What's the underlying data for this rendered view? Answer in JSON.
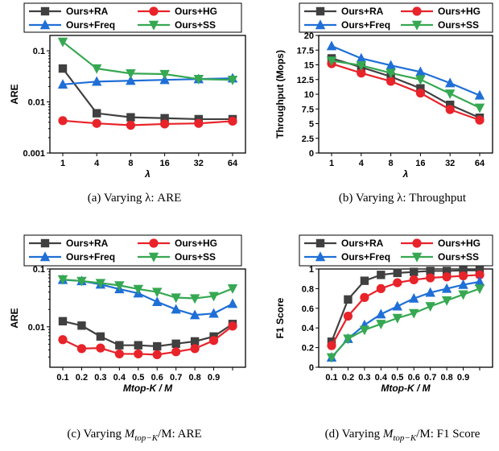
{
  "chart_data": [
    {
      "type": "line",
      "caption": "(a)  Varying λ: ARE",
      "xlabel": "λ",
      "ylabel": "ARE",
      "yscale": "log",
      "ylim": [
        0.001,
        0.2
      ],
      "yticks": [
        0.001,
        0.01,
        0.1
      ],
      "ytick_labels": [
        "0.001",
        "0.01",
        "0.1"
      ],
      "x": [
        1,
        4,
        8,
        16,
        32,
        64
      ],
      "x_tick_labels": [
        "1",
        "4",
        "8",
        "16",
        "32",
        "64"
      ],
      "series": [
        {
          "name": "Ours+RA",
          "color": "#404040",
          "marker": "square",
          "values": [
            0.045,
            0.006,
            0.005,
            0.0048,
            0.0046,
            0.0046
          ]
        },
        {
          "name": "Ours+HG",
          "color": "#e8232a",
          "marker": "circle",
          "values": [
            0.0043,
            0.0038,
            0.0035,
            0.0037,
            0.0038,
            0.0042
          ]
        },
        {
          "name": "Ours+Freq",
          "color": "#1f6fd6",
          "marker": "triangle-up",
          "values": [
            0.022,
            0.025,
            0.026,
            0.027,
            0.028,
            0.029
          ]
        },
        {
          "name": "Ours+SS",
          "color": "#36a852",
          "marker": "triangle-down",
          "values": [
            0.15,
            0.045,
            0.036,
            0.035,
            0.028,
            0.027
          ]
        }
      ]
    },
    {
      "type": "line",
      "caption": "(b)  Varying λ: Throughput",
      "xlabel": "λ",
      "ylabel": "Throughput (Mops)",
      "yscale": "linear",
      "ylim": [
        0,
        20
      ],
      "yticks": [
        0,
        2.5,
        5,
        7.5,
        10,
        12.5,
        15,
        17.5,
        20
      ],
      "ytick_labels": [
        "0",
        "2.5",
        "5",
        "7.5",
        "10",
        "12.5",
        "15",
        "17.5",
        "20"
      ],
      "x": [
        1,
        4,
        8,
        16,
        32,
        64
      ],
      "x_tick_labels": [
        "1",
        "4",
        "8",
        "16",
        "32",
        "64"
      ],
      "series": [
        {
          "name": "Ours+RA",
          "color": "#404040",
          "marker": "square",
          "values": [
            16.1,
            14.6,
            13.0,
            11.0,
            8.2,
            6.0
          ]
        },
        {
          "name": "Ours+HG",
          "color": "#e8232a",
          "marker": "circle",
          "values": [
            15.2,
            13.6,
            12.2,
            10.2,
            7.4,
            5.6
          ]
        },
        {
          "name": "Ours+Freq",
          "color": "#1f6fd6",
          "marker": "triangle-up",
          "values": [
            18.2,
            16.1,
            14.9,
            13.8,
            11.9,
            9.8
          ]
        },
        {
          "name": "Ours+SS",
          "color": "#36a852",
          "marker": "triangle-down",
          "values": [
            15.7,
            14.9,
            13.6,
            12.5,
            10.1,
            7.7
          ]
        }
      ]
    },
    {
      "type": "line",
      "caption": "(c)  Varying M_{top−K}/M: ARE",
      "xlabel": "Mtop-K / M",
      "ylabel": "ARE",
      "yscale": "log",
      "ylim": [
        0.002,
        0.1
      ],
      "yticks": [
        0.01,
        0.1
      ],
      "ytick_labels": [
        "0.01",
        "0.1"
      ],
      "x": [
        0.05,
        0.15,
        0.25,
        0.35,
        0.45,
        0.55,
        0.65,
        0.75,
        0.85,
        0.95
      ],
      "x_tick_labels": [
        "0.1",
        "0.2",
        "0.3",
        "0.4",
        "0.5",
        "0.6",
        "0.7",
        "0.8",
        "0.9"
      ],
      "series": [
        {
          "name": "Ours+RA",
          "color": "#404040",
          "marker": "square",
          "values": [
            0.0125,
            0.0105,
            0.0068,
            0.0048,
            0.0048,
            0.0046,
            0.0051,
            0.0056,
            0.0068,
            0.0112
          ]
        },
        {
          "name": "Ours+HG",
          "color": "#e8232a",
          "marker": "circle",
          "values": [
            0.006,
            0.0042,
            0.0043,
            0.0034,
            0.0034,
            0.0033,
            0.0037,
            0.0042,
            0.0058,
            0.0103
          ]
        },
        {
          "name": "Ours+Freq",
          "color": "#1f6fd6",
          "marker": "triangle-up",
          "values": [
            0.065,
            0.062,
            0.054,
            0.045,
            0.038,
            0.027,
            0.02,
            0.016,
            0.017,
            0.025
          ]
        },
        {
          "name": "Ours+SS",
          "color": "#36a852",
          "marker": "triangle-down",
          "values": [
            0.066,
            0.062,
            0.057,
            0.052,
            0.045,
            0.04,
            0.032,
            0.031,
            0.034,
            0.046
          ]
        }
      ]
    },
    {
      "type": "line",
      "caption": "(d)  Varying M_{top−K}/M: F1 Score",
      "xlabel": "Mtop-K / M",
      "ylabel": "F1 Score",
      "yscale": "linear",
      "ylim": [
        0,
        1
      ],
      "yticks": [
        0,
        0.2,
        0.4,
        0.6,
        0.8,
        1
      ],
      "ytick_labels": [
        "0",
        "0.2",
        "0.4",
        "0.6",
        "0.8",
        "1"
      ],
      "x": [
        0.05,
        0.15,
        0.25,
        0.35,
        0.45,
        0.55,
        0.65,
        0.75,
        0.85,
        0.95
      ],
      "x_tick_labels": [
        "0.1",
        "0.2",
        "0.3",
        "0.4",
        "0.5",
        "0.6",
        "0.7",
        "0.8",
        "0.9"
      ],
      "series": [
        {
          "name": "Ours+RA",
          "color": "#404040",
          "marker": "square",
          "values": [
            0.26,
            0.69,
            0.88,
            0.94,
            0.96,
            0.97,
            0.98,
            0.98,
            0.985,
            0.985
          ]
        },
        {
          "name": "Ours+HG",
          "color": "#e8232a",
          "marker": "circle",
          "values": [
            0.22,
            0.52,
            0.71,
            0.8,
            0.86,
            0.89,
            0.91,
            0.92,
            0.93,
            0.94
          ]
        },
        {
          "name": "Ours+Freq",
          "color": "#1f6fd6",
          "marker": "triangle-up",
          "values": [
            0.1,
            0.29,
            0.43,
            0.54,
            0.62,
            0.7,
            0.76,
            0.8,
            0.84,
            0.87
          ]
        },
        {
          "name": "Ours+SS",
          "color": "#36a852",
          "marker": "triangle-down",
          "values": [
            0.1,
            0.29,
            0.38,
            0.44,
            0.5,
            0.55,
            0.62,
            0.68,
            0.74,
            0.8
          ]
        }
      ]
    }
  ]
}
